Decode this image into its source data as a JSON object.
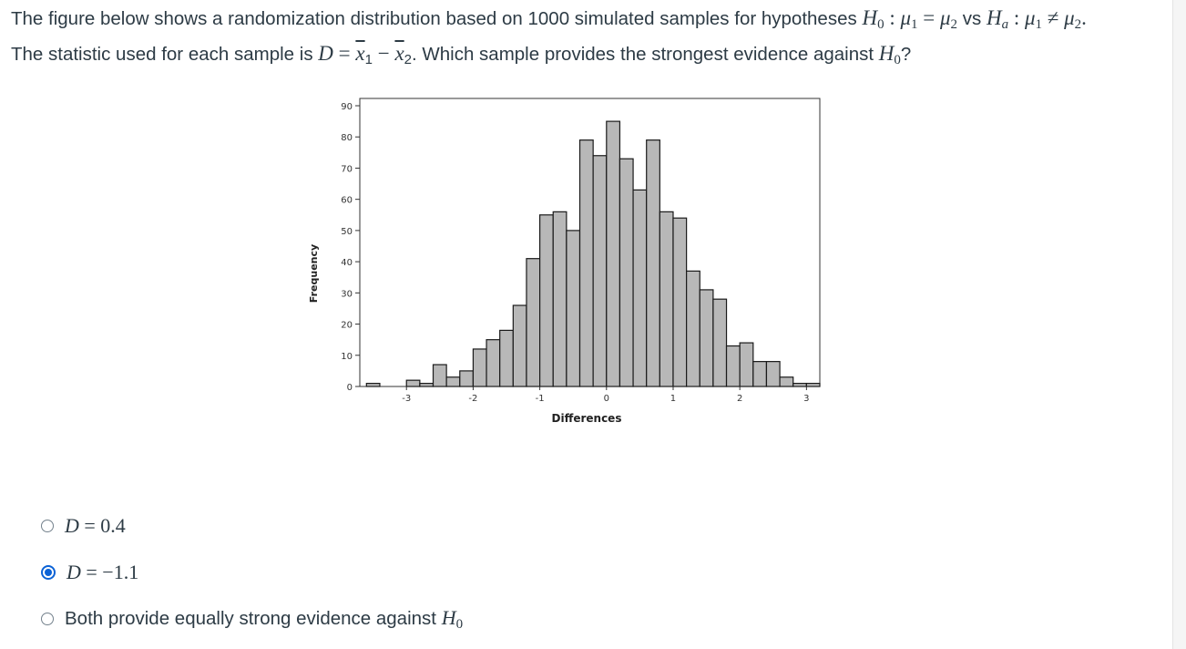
{
  "question": {
    "line1_text": "The figure below shows a randomization distribution based on 1000 simulated samples for hypotheses",
    "line1_h0": "H",
    "line1_h0_sub": "0",
    "line1_colon": " : ",
    "mu": "μ",
    "sub1": "1",
    "sub2": "2",
    "eq": " = ",
    "vs": " vs ",
    "ha": "H",
    "ha_sub": "a",
    "neq": " ≠ ",
    "period": ".",
    "line2_text": "The statistic used for each sample is",
    "d": "D",
    "x": "x",
    "minus": " − ",
    "line2_rest": ". Which sample provides the strongest evidence against",
    "q": "?"
  },
  "chart_data": {
    "type": "bar",
    "xlabel": "Differences",
    "ylabel": "Frequency",
    "xlim": [
      -3.7,
      3.2
    ],
    "ylim": [
      0,
      90
    ],
    "xticks": [
      -3,
      -2,
      -1,
      0,
      1,
      2,
      3
    ],
    "yticks": [
      0,
      10,
      20,
      30,
      40,
      50,
      60,
      70,
      80,
      90
    ],
    "bin_width": 0.2,
    "bins": [
      {
        "x": -3.6,
        "y": 1
      },
      {
        "x": -3.0,
        "y": 2
      },
      {
        "x": -2.8,
        "y": 1
      },
      {
        "x": -2.6,
        "y": 7
      },
      {
        "x": -2.4,
        "y": 3
      },
      {
        "x": -2.2,
        "y": 5
      },
      {
        "x": -2.0,
        "y": 12
      },
      {
        "x": -1.8,
        "y": 15
      },
      {
        "x": -1.6,
        "y": 18
      },
      {
        "x": -1.4,
        "y": 26
      },
      {
        "x": -1.2,
        "y": 41
      },
      {
        "x": -1.0,
        "y": 55
      },
      {
        "x": -0.8,
        "y": 56
      },
      {
        "x": -0.6,
        "y": 50
      },
      {
        "x": -0.4,
        "y": 79
      },
      {
        "x": -0.2,
        "y": 74
      },
      {
        "x": 0.0,
        "y": 85
      },
      {
        "x": 0.2,
        "y": 73
      },
      {
        "x": 0.4,
        "y": 63
      },
      {
        "x": 0.6,
        "y": 79
      },
      {
        "x": 0.8,
        "y": 56
      },
      {
        "x": 1.0,
        "y": 54
      },
      {
        "x": 1.2,
        "y": 37
      },
      {
        "x": 1.4,
        "y": 31
      },
      {
        "x": 1.6,
        "y": 28
      },
      {
        "x": 1.8,
        "y": 13
      },
      {
        "x": 2.0,
        "y": 14
      },
      {
        "x": 2.2,
        "y": 8
      },
      {
        "x": 2.4,
        "y": 8
      },
      {
        "x": 2.6,
        "y": 3
      },
      {
        "x": 2.8,
        "y": 1
      },
      {
        "x": 3.0,
        "y": 1
      }
    ]
  },
  "options": [
    {
      "label": "D = 0.4",
      "var": "D",
      "rest": " = 0.4",
      "selected": false
    },
    {
      "label": "D = −1.1",
      "var": "D",
      "rest": " = −1.1",
      "selected": true
    },
    {
      "label": "Both provide equally strong evidence against H0",
      "text": "Both provide equally strong evidence against",
      "var": "H",
      "sub": "0",
      "selected": false
    }
  ],
  "colors": {
    "text": "#2d3b45",
    "bar_fill": "#b8b8b8",
    "bar_stroke": "#1a1a1a",
    "radio_checked": "#0b62d6"
  }
}
